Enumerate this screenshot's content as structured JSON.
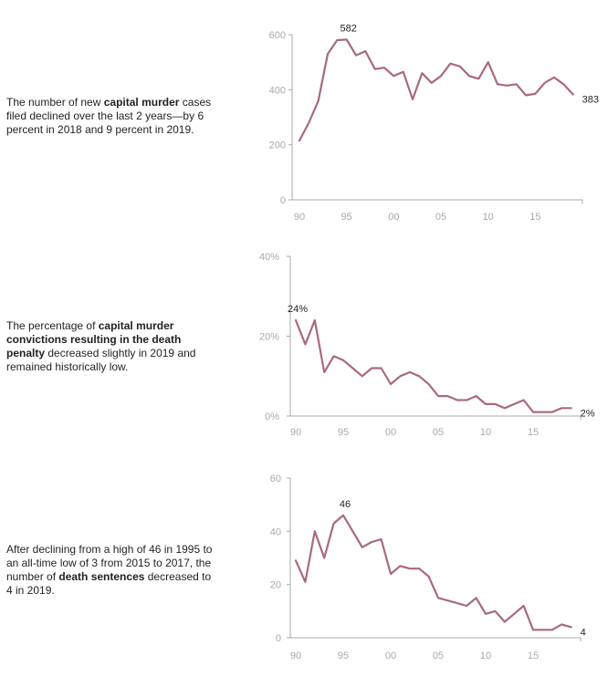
{
  "panels": [
    {
      "description": [
        {
          "text": "The number of new ",
          "bold": false
        },
        {
          "text": "capital murder",
          "bold": true
        },
        {
          "text": " cases filed declined over the last 2 years—by 6 percent in 2018 and 9 percent in 2019.",
          "bold": false
        }
      ]
    },
    {
      "description": [
        {
          "text": "The percentage of ",
          "bold": false
        },
        {
          "text": "capital murder convictions resulting in the death penalty",
          "bold": true
        },
        {
          "text": " decreased slightly in 2019 and remained historically low.",
          "bold": false
        }
      ]
    },
    {
      "description": [
        {
          "text": "After declining from a high of 46 in 1995 to an all-time low of 3 from 2015 to 2017, the number of ",
          "bold": false
        },
        {
          "text": "death sentences",
          "bold": true
        },
        {
          "text": " decreased to 4 in 2019.",
          "bold": false
        }
      ]
    }
  ],
  "colors": {
    "line": "#a9697f",
    "axis": "#a7a9ac",
    "tick_text": "#a7a9ac",
    "text": "#231f20"
  },
  "chart_data": [
    {
      "type": "line",
      "title": "New capital murder cases filed",
      "xlabel": "",
      "ylabel": "",
      "x": [
        1990,
        1991,
        1992,
        1993,
        1994,
        1995,
        1996,
        1997,
        1998,
        1999,
        2000,
        2001,
        2002,
        2003,
        2004,
        2005,
        2006,
        2007,
        2008,
        2009,
        2010,
        2011,
        2012,
        2013,
        2014,
        2015,
        2016,
        2017,
        2018,
        2019
      ],
      "values": [
        215,
        280,
        360,
        530,
        580,
        582,
        525,
        540,
        475,
        480,
        450,
        465,
        365,
        460,
        425,
        450,
        495,
        485,
        450,
        440,
        500,
        420,
        415,
        420,
        380,
        385,
        425,
        445,
        420,
        383
      ],
      "xlim": [
        1990,
        2020
      ],
      "ylim": [
        0,
        600
      ],
      "yticks": [
        "0",
        "200",
        "400",
        "600"
      ],
      "xticks": [
        "90",
        "95",
        "00",
        "05",
        "10",
        "15"
      ],
      "annotations": [
        {
          "text": "582",
          "x": 1995,
          "y": 582,
          "pos": "above"
        },
        {
          "text": "383",
          "x": 2019,
          "y": 383,
          "pos": "right"
        }
      ]
    },
    {
      "type": "line",
      "title": "Percentage of capital murder convictions resulting in death penalty",
      "xlabel": "",
      "ylabel": "",
      "x": [
        1990,
        1991,
        1992,
        1993,
        1994,
        1995,
        1996,
        1997,
        1998,
        1999,
        2000,
        2001,
        2002,
        2003,
        2004,
        2005,
        2006,
        2007,
        2008,
        2009,
        2010,
        2011,
        2012,
        2013,
        2014,
        2015,
        2016,
        2017,
        2018,
        2019
      ],
      "values": [
        24,
        18,
        24,
        11,
        15,
        14,
        12,
        10,
        12,
        12,
        8,
        10,
        11,
        10,
        8,
        5,
        5,
        4,
        4,
        5,
        3,
        3,
        2,
        3,
        4,
        1,
        1,
        1,
        2,
        2
      ],
      "xlim": [
        1990,
        2020
      ],
      "ylim": [
        0,
        40
      ],
      "yticks": [
        "0%",
        "20%",
        "40%"
      ],
      "xticks": [
        "90",
        "95",
        "00",
        "05",
        "10",
        "15"
      ],
      "annotations": [
        {
          "text": "24%",
          "x": 1990,
          "y": 24,
          "pos": "above"
        },
        {
          "text": "2%",
          "x": 2019,
          "y": 2,
          "pos": "right"
        }
      ]
    },
    {
      "type": "line",
      "title": "Death sentences",
      "xlabel": "",
      "ylabel": "",
      "x": [
        1990,
        1991,
        1992,
        1993,
        1994,
        1995,
        1996,
        1997,
        1998,
        1999,
        2000,
        2001,
        2002,
        2003,
        2004,
        2005,
        2006,
        2007,
        2008,
        2009,
        2010,
        2011,
        2012,
        2013,
        2014,
        2015,
        2016,
        2017,
        2018,
        2019
      ],
      "values": [
        29,
        21,
        40,
        30,
        43,
        46,
        40,
        34,
        36,
        37,
        24,
        27,
        26,
        26,
        23,
        15,
        14,
        13,
        12,
        15,
        9,
        10,
        6,
        9,
        12,
        3,
        3,
        3,
        5,
        4
      ],
      "xlim": [
        1990,
        2020
      ],
      "ylim": [
        0,
        60
      ],
      "yticks": [
        "0",
        "20",
        "40",
        "60"
      ],
      "xticks": [
        "90",
        "95",
        "00",
        "05",
        "10",
        "15"
      ],
      "annotations": [
        {
          "text": "46",
          "x": 1995,
          "y": 46,
          "pos": "above"
        },
        {
          "text": "4",
          "x": 2019,
          "y": 4,
          "pos": "right"
        }
      ]
    }
  ]
}
